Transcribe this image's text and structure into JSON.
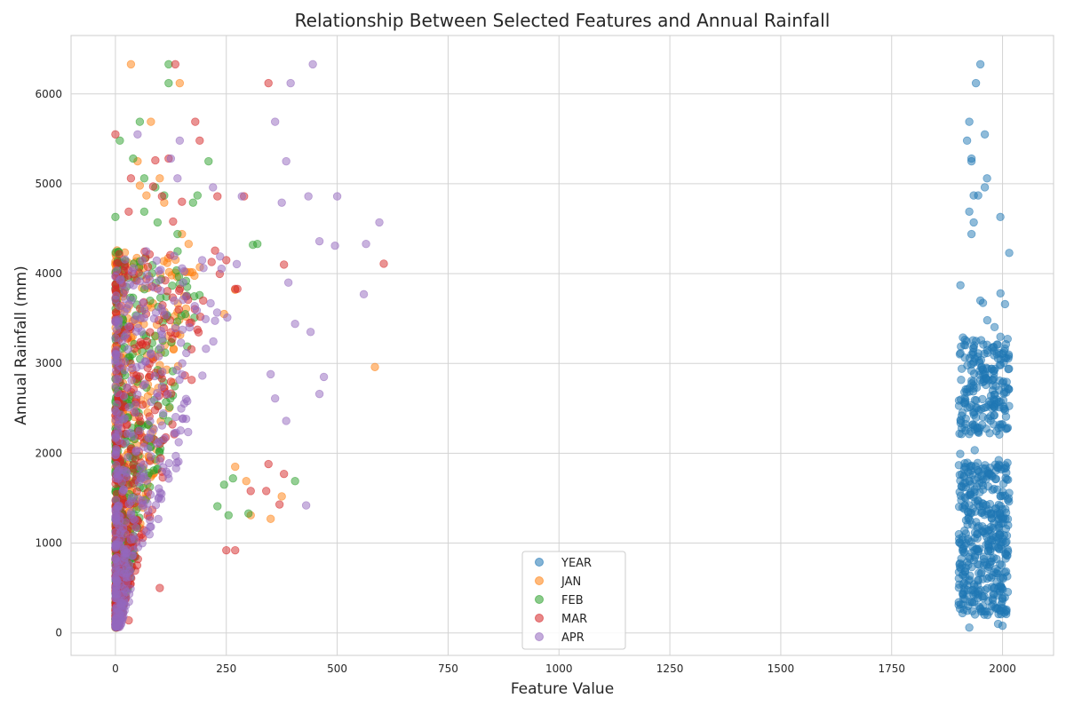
{
  "chart_data": {
    "type": "scatter",
    "title": "Relationship Between Selected Features and Annual Rainfall",
    "xlabel": "Feature Value",
    "ylabel": "Annual Rainfall (mm)",
    "xlim": [
      -100,
      2115
    ],
    "ylim": [
      -250,
      6650
    ],
    "x_ticks": [
      0,
      250,
      500,
      750,
      1000,
      1250,
      1500,
      1750,
      2000
    ],
    "y_ticks": [
      0,
      1000,
      2000,
      3000,
      4000,
      5000,
      6000
    ],
    "grid": true,
    "legend_position": "lower-center",
    "series": [
      {
        "name": "YEAR",
        "color": "#1f77b4",
        "cluster_x_range": [
          1901,
          2015
        ],
        "dense_y_range": [
          100,
          3800
        ],
        "points": [
          [
            1950,
            6330
          ],
          [
            1940,
            6120
          ],
          [
            1925,
            5690
          ],
          [
            1920,
            5480
          ],
          [
            1960,
            5550
          ],
          [
            1930,
            5280
          ],
          [
            1930,
            5250
          ],
          [
            1965,
            5060
          ],
          [
            1960,
            4960
          ],
          [
            1945,
            4870
          ],
          [
            1935,
            4870
          ],
          [
            1925,
            4690
          ],
          [
            1995,
            4630
          ],
          [
            1935,
            4570
          ],
          [
            1930,
            4440
          ],
          [
            2015,
            4230
          ],
          [
            1905,
            3870
          ],
          [
            1950,
            3700
          ],
          [
            1925,
            60
          ],
          [
            1990,
            100
          ],
          [
            2000,
            80
          ]
        ]
      },
      {
        "name": "JAN",
        "color": "#ff7f0e",
        "points": [
          [
            35,
            6330
          ],
          [
            145,
            6120
          ],
          [
            80,
            5690
          ],
          [
            50,
            5250
          ],
          [
            55,
            4980
          ],
          [
            100,
            5060
          ],
          [
            70,
            4870
          ],
          [
            110,
            4790
          ],
          [
            165,
            4330
          ],
          [
            150,
            4440
          ],
          [
            270,
            3820
          ],
          [
            245,
            3550
          ],
          [
            585,
            2960
          ],
          [
            375,
            1520
          ],
          [
            350,
            1270
          ],
          [
            305,
            1310
          ],
          [
            295,
            1690
          ],
          [
            270,
            1850
          ],
          [
            140,
            3330
          ],
          [
            110,
            2730
          ]
        ]
      },
      {
        "name": "FEB",
        "color": "#2ca02c",
        "points": [
          [
            120,
            6330
          ],
          [
            120,
            6120
          ],
          [
            55,
            5690
          ],
          [
            10,
            5480
          ],
          [
            40,
            5280
          ],
          [
            210,
            5250
          ],
          [
            65,
            5060
          ],
          [
            90,
            4960
          ],
          [
            110,
            4870
          ],
          [
            185,
            4870
          ],
          [
            175,
            4790
          ],
          [
            65,
            4690
          ],
          [
            0,
            4630
          ],
          [
            95,
            4570
          ],
          [
            140,
            4440
          ],
          [
            310,
            4320
          ],
          [
            320,
            4330
          ],
          [
            405,
            1690
          ],
          [
            265,
            1720
          ],
          [
            245,
            1650
          ],
          [
            230,
            1410
          ],
          [
            255,
            1310
          ],
          [
            300,
            1330
          ]
        ]
      },
      {
        "name": "MAR",
        "color": "#d62728",
        "points": [
          [
            135,
            6330
          ],
          [
            345,
            6120
          ],
          [
            180,
            5690
          ],
          [
            190,
            5480
          ],
          [
            0,
            5550
          ],
          [
            120,
            5280
          ],
          [
            90,
            5260
          ],
          [
            35,
            5060
          ],
          [
            85,
            4970
          ],
          [
            105,
            4860
          ],
          [
            230,
            4860
          ],
          [
            290,
            4860
          ],
          [
            30,
            4690
          ],
          [
            150,
            4800
          ],
          [
            130,
            4580
          ],
          [
            605,
            4110
          ],
          [
            380,
            4100
          ],
          [
            250,
            4150
          ],
          [
            270,
            3830
          ],
          [
            275,
            3830
          ],
          [
            345,
            1880
          ],
          [
            380,
            1770
          ],
          [
            305,
            1580
          ],
          [
            340,
            1580
          ],
          [
            370,
            1430
          ],
          [
            270,
            920
          ],
          [
            250,
            920
          ],
          [
            100,
            500
          ],
          [
            30,
            140
          ]
        ]
      },
      {
        "name": "APR",
        "color": "#9467bd",
        "points": [
          [
            445,
            6330
          ],
          [
            395,
            6120
          ],
          [
            360,
            5690
          ],
          [
            145,
            5480
          ],
          [
            385,
            5250
          ],
          [
            125,
            5280
          ],
          [
            50,
            5550
          ],
          [
            220,
            4960
          ],
          [
            140,
            5060
          ],
          [
            500,
            4860
          ],
          [
            435,
            4860
          ],
          [
            285,
            4860
          ],
          [
            375,
            4790
          ],
          [
            595,
            4570
          ],
          [
            460,
            4360
          ],
          [
            565,
            4330
          ],
          [
            495,
            4310
          ],
          [
            560,
            3770
          ],
          [
            390,
            3900
          ],
          [
            405,
            3440
          ],
          [
            470,
            2850
          ],
          [
            460,
            2660
          ],
          [
            440,
            3350
          ],
          [
            430,
            1420
          ],
          [
            385,
            2360
          ],
          [
            360,
            2610
          ],
          [
            350,
            2880
          ]
        ]
      }
    ]
  }
}
